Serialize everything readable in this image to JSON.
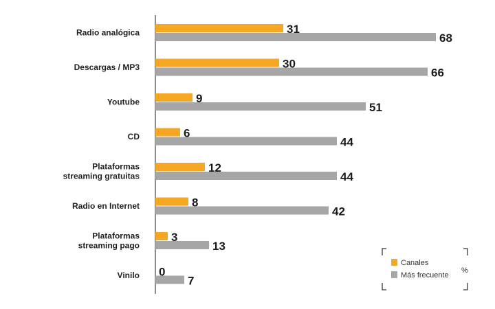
{
  "chart_data": {
    "type": "bar",
    "orientation": "horizontal",
    "categories": [
      [
        "Radio analógica"
      ],
      [
        "Descargas / MP3"
      ],
      [
        "Youtube"
      ],
      [
        "CD"
      ],
      [
        "Plataformas",
        "streaming gratuitas"
      ],
      [
        "Radio en Internet"
      ],
      [
        "Plataformas",
        "streaming pago"
      ],
      [
        "Vinilo"
      ]
    ],
    "series": [
      {
        "name": "Canales",
        "color": "#f5a623",
        "values": [
          31,
          30,
          9,
          6,
          12,
          8,
          3,
          0
        ]
      },
      {
        "name": "Más frecuente",
        "color": "#a6a6a6",
        "values": [
          68,
          66,
          51,
          44,
          44,
          42,
          13,
          7
        ]
      }
    ],
    "unit": "%",
    "xlim": [
      0,
      70
    ],
    "legend_position": "bottom-right",
    "grid": false
  }
}
